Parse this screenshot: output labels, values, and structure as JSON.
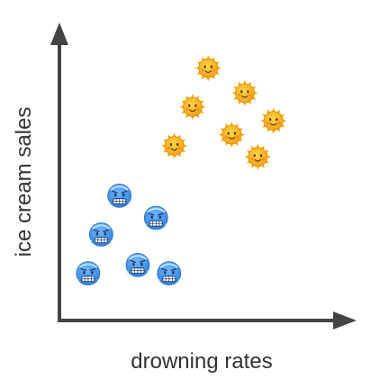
{
  "chart_data": {
    "type": "scatter",
    "title": "",
    "xlabel": "drowning rates",
    "ylabel": "ice cream sales",
    "grid": false,
    "axis_ticks": false,
    "series": [
      {
        "icon": "sun-face-icon",
        "color": "#f5a300",
        "points": [
          {
            "x": 0.57,
            "y": 0.91
          },
          {
            "x": 0.71,
            "y": 0.82
          },
          {
            "x": 0.51,
            "y": 0.77
          },
          {
            "x": 0.82,
            "y": 0.72
          },
          {
            "x": 0.66,
            "y": 0.67
          },
          {
            "x": 0.44,
            "y": 0.63
          },
          {
            "x": 0.76,
            "y": 0.59
          }
        ]
      },
      {
        "icon": "cold-face-icon",
        "color": "#3d8fe8",
        "points": [
          {
            "x": 0.23,
            "y": 0.45
          },
          {
            "x": 0.37,
            "y": 0.37
          },
          {
            "x": 0.16,
            "y": 0.31
          },
          {
            "x": 0.3,
            "y": 0.2
          },
          {
            "x": 0.11,
            "y": 0.17
          },
          {
            "x": 0.42,
            "y": 0.17
          }
        ]
      }
    ],
    "xlim": [
      0,
      1
    ],
    "ylim": [
      0,
      1
    ]
  },
  "colors": {
    "axis": "#444444",
    "text": "#333333"
  }
}
